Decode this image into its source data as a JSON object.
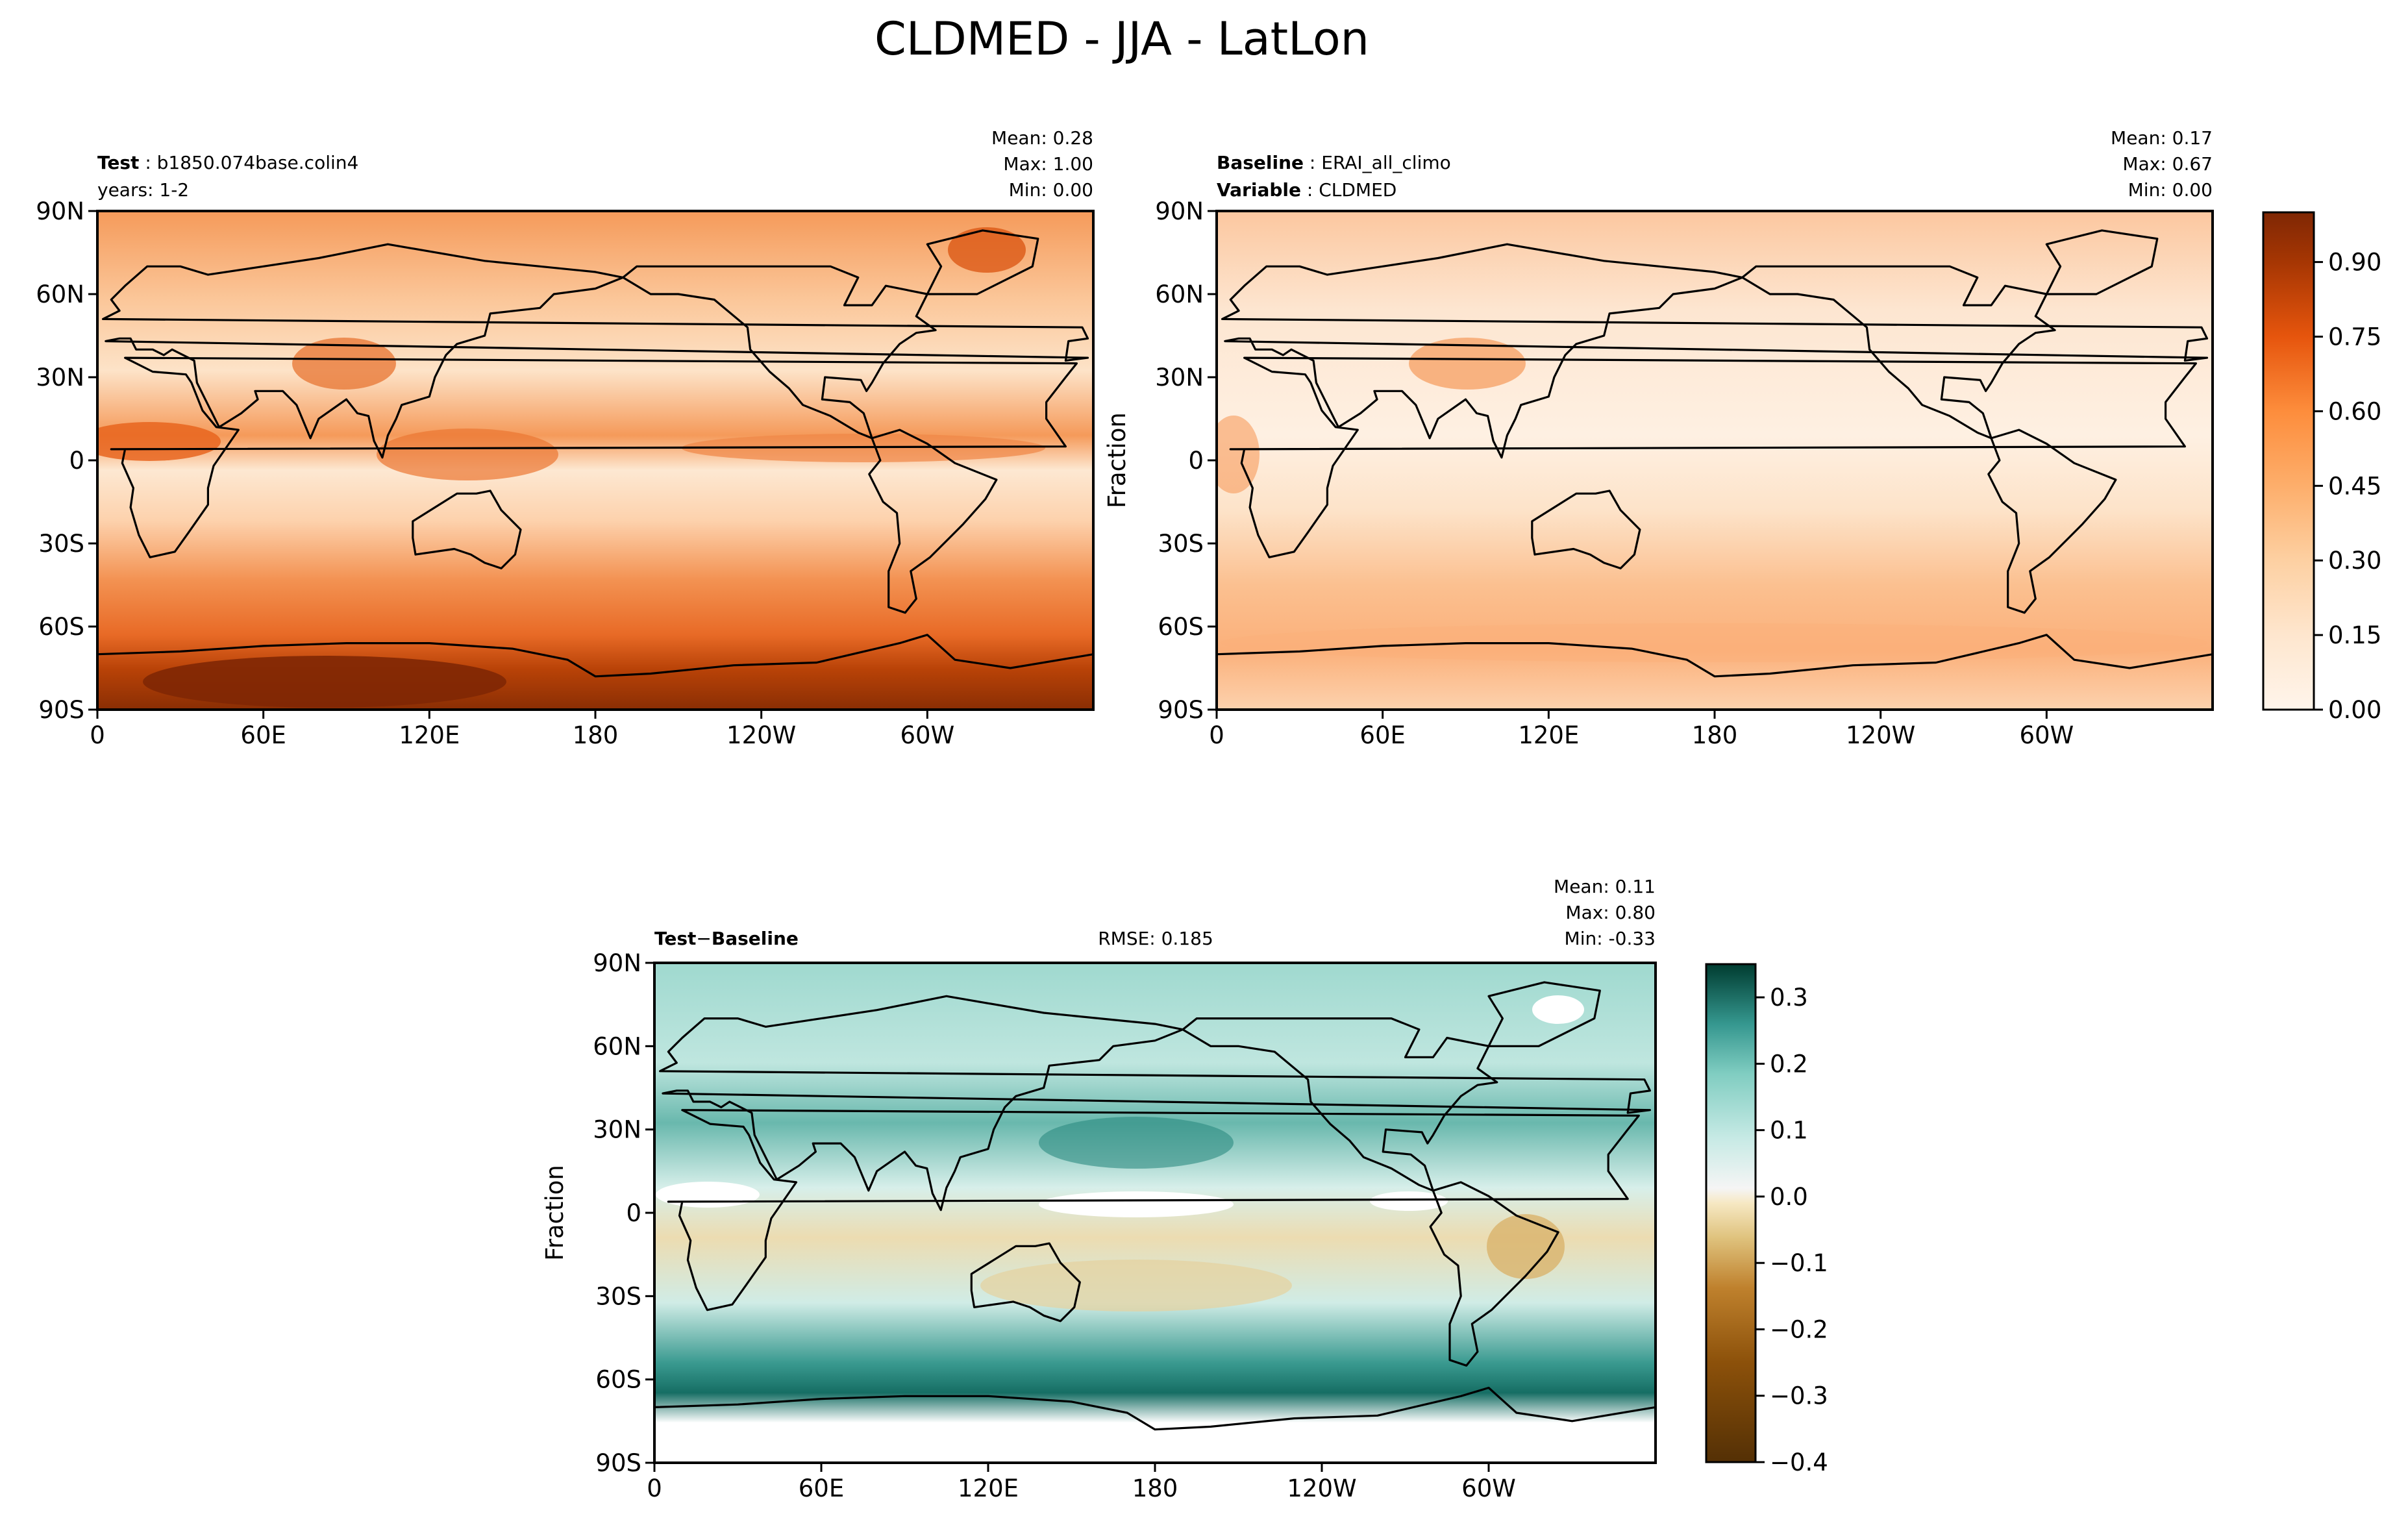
{
  "title": "CLDMED - JJA - LatLon",
  "lon_ticks": [
    "0",
    "60E",
    "120E",
    "180",
    "120W",
    "60W"
  ],
  "lat_ticks": [
    "90N",
    "60N",
    "30N",
    "0",
    "30S",
    "60S",
    "90S"
  ],
  "panels": [
    {
      "id": "test",
      "label_bold_1": "Test",
      "label_text_1": "b1850.074base.colin4",
      "label_line_2": "years: 1-2",
      "mean": "Mean:  0.28",
      "max": "Max:  1.00",
      "min": "Min:  0.00",
      "colormap": "Oranges"
    },
    {
      "id": "baseline",
      "label_bold_1": "Baseline",
      "label_text_1": "ERAI_all_climo",
      "label_bold_2": "Variable",
      "label_text_2": "CLDMED",
      "ylabel": "Fraction",
      "mean": "Mean:  0.17",
      "max": "Max:  0.67",
      "min": "Min:  0.00",
      "colormap": "Oranges"
    },
    {
      "id": "diff",
      "label_bold_1": "Test",
      "label_minus": "−",
      "label_bold_2": "Baseline",
      "rmse": "RMSE: 0.185",
      "ylabel": "Fraction",
      "mean": "Mean:  0.11",
      "max": "Max:  0.80",
      "min": "Min: -0.33",
      "colormap": "BrBG"
    }
  ],
  "colorbar_top": {
    "ticks": [
      "0.00",
      "0.15",
      "0.30",
      "0.45",
      "0.60",
      "0.75",
      "0.90"
    ],
    "range": [
      0,
      1.0
    ],
    "colors": [
      "#fff5eb",
      "#fee6ce",
      "#fdd0a2",
      "#fdae6b",
      "#fd8d3c",
      "#f16913",
      "#d94801",
      "#a63603",
      "#7f2704"
    ]
  },
  "colorbar_diff": {
    "ticks": [
      "0.3",
      "0.2",
      "0.1",
      "0.0",
      "−0.1",
      "−0.2",
      "−0.3",
      "−0.4"
    ],
    "range": [
      -0.4,
      0.35
    ],
    "neg_colors": [
      "#543005",
      "#8c510a",
      "#bf812d",
      "#dfc27d",
      "#f6e8c3"
    ],
    "pos_colors": [
      "#c7eae5",
      "#80cdc1",
      "#35978f",
      "#01665e",
      "#003c30"
    ]
  }
}
